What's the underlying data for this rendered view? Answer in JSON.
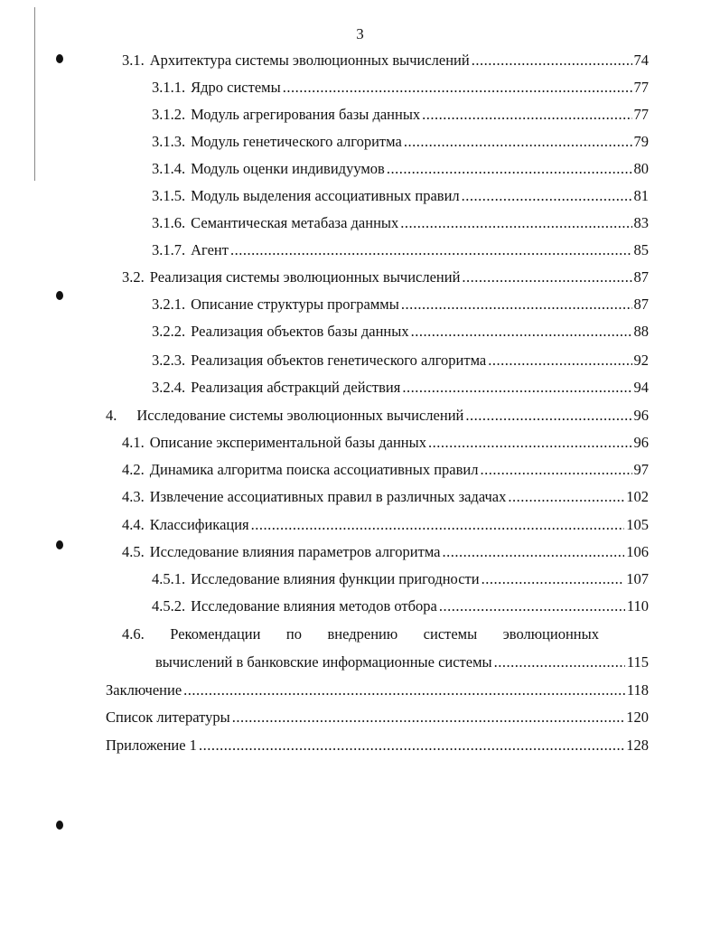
{
  "page_number": "3",
  "toc": [
    {
      "num": "3.1.",
      "title": "Архитектура системы эволюционных вычислений",
      "page": "74",
      "level": 1
    },
    {
      "num": "3.1.1.",
      "title": "Ядро системы",
      "page": "77",
      "level": 2
    },
    {
      "num": "3.1.2.",
      "title": "Модуль агрегирования базы данных",
      "page": "77",
      "level": 2
    },
    {
      "num": "3.1.3.",
      "title": "Модуль генетического алгоритма",
      "page": "79",
      "level": 2
    },
    {
      "num": "3.1.4.",
      "title": "Модуль оценки индивидуумов",
      "page": "80",
      "level": 2
    },
    {
      "num": "3.1.5.",
      "title": "Модуль выделения ассоциативных правил",
      "page": "81",
      "level": 2
    },
    {
      "num": "3.1.6.",
      "title": "Семантическая метабаза данных",
      "page": "83",
      "level": 2
    },
    {
      "num": "3.1.7.",
      "title": "Агент",
      "page": "85",
      "level": 2
    },
    {
      "num": "3.2.",
      "title": "Реализация системы эволюционных вычислений",
      "page": "87",
      "level": 1
    },
    {
      "num": "3.2.1.",
      "title": "Описание структуры программы",
      "page": "87",
      "level": 2
    },
    {
      "num": "3.2.2.",
      "title": "Реализация объектов базы данных",
      "page": "88",
      "level": 2
    },
    {
      "num": "3.2.3.",
      "title": "Реализация объектов генетического алгоритма",
      "page": "92",
      "level": 2
    },
    {
      "num": "3.2.4.",
      "title": "Реализация абстракций действия",
      "page": "94",
      "level": 2
    },
    {
      "num": "4.",
      "title": "Исследование системы эволюционных вычислений",
      "page": "96",
      "level": 0
    },
    {
      "num": "4.1.",
      "title": "Описание экспериментальной базы данных",
      "page": "96",
      "level": 1
    },
    {
      "num": "4.2.",
      "title": "Динамика алгоритма поиска ассоциативных правил",
      "page": "97",
      "level": 1
    },
    {
      "num": "4.3.",
      "title": "Извлечение ассоциативных правил в различных задачах",
      "page": "102",
      "level": 1
    },
    {
      "num": "4.4.",
      "title": "Классификация",
      "page": "105",
      "level": 1
    },
    {
      "num": "4.5.",
      "title": "Исследование влияния параметров алгоритма",
      "page": "106",
      "level": 1
    },
    {
      "num": "4.5.1.",
      "title": "Исследование влияния функции пригодности",
      "page": "107",
      "level": 2
    },
    {
      "num": "4.5.2.",
      "title": "Исследование влияния методов отбора",
      "page": "110",
      "level": 2
    }
  ],
  "toc_46": {
    "num": "4.6.",
    "line1_words": [
      "Рекомендации",
      "по",
      "внедрению",
      "системы",
      "эволюционных"
    ],
    "line2": "вычислений в банковские информационные системы",
    "page": "115"
  },
  "toc_end": [
    {
      "title": "Заключение",
      "page": "118"
    },
    {
      "title": "Список литературы",
      "page": "120"
    },
    {
      "title": "Приложение 1",
      "page": "128"
    }
  ]
}
